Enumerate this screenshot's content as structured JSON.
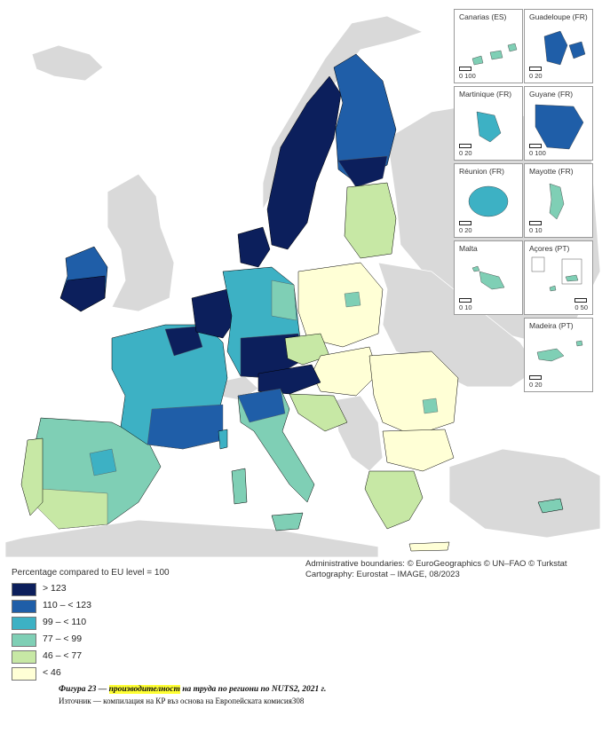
{
  "colors": {
    "sea": "#ffffff",
    "non_eu": "#d9d9d9",
    "gt123": "#0c1f5c",
    "c110_123": "#1f5ea8",
    "c99_110": "#3db1c4",
    "c77_99": "#7fcfb5",
    "c46_77": "#c7e8a5",
    "lt46": "#ffffd6",
    "border": "#000000"
  },
  "insets": [
    {
      "name": "Canarias (ES)",
      "scale": "0   100"
    },
    {
      "name": "Guadeloupe (FR)",
      "scale": "0   20"
    },
    {
      "name": "Martinique (FR)",
      "scale": "0   20"
    },
    {
      "name": "Guyane (FR)",
      "scale": "0   100"
    },
    {
      "name": "Réunion (FR)",
      "scale": "0   20"
    },
    {
      "name": "Mayotte (FR)",
      "scale": "0   10"
    },
    {
      "name": "Malta",
      "scale": "0   10"
    },
    {
      "name": "Açores (PT)",
      "scale": "0   50"
    },
    {
      "name": "Madeira (PT)",
      "scale": "0   20"
    }
  ],
  "attribution": {
    "line1": "Administrative boundaries: © EuroGeographics © UN–FAO © Turkstat",
    "line2": "Cartography: Eurostat – IMAGE, 08/2023"
  },
  "legend": {
    "title": "Percentage compared to EU level = 100",
    "items": [
      {
        "label": "> 123",
        "color": "#0c1f5c"
      },
      {
        "label": "110 – < 123",
        "color": "#1f5ea8"
      },
      {
        "label": "99 – < 110",
        "color": "#3db1c4"
      },
      {
        "label": "77 – < 99",
        "color": "#7fcfb5"
      },
      {
        "label": "46 – < 77",
        "color": "#c7e8a5"
      },
      {
        "label": "< 46",
        "color": "#ffffd6"
      }
    ]
  },
  "caption": {
    "prefix": "Фигура 23 — ",
    "highlight": "производителност",
    "suffix": " на труда по региони по NUTS2, 2021 г."
  },
  "source": "Източник — компилация на КР въз основа на Европейската комисия308"
}
